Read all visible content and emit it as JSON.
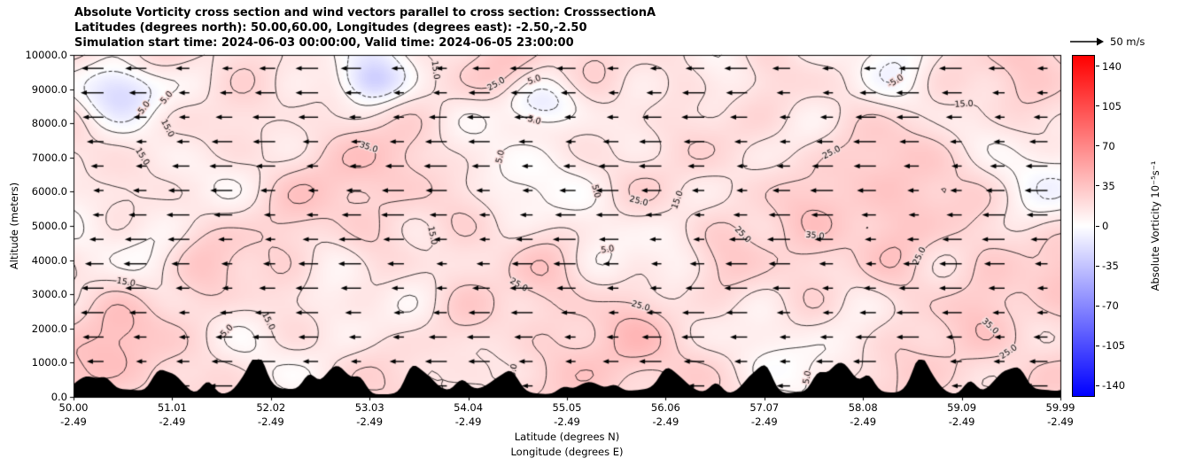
{
  "titles": {
    "line1": "Absolute Vorticity cross section and wind vectors parallel to cross section: CrosssectionA",
    "line2": "Latitudes (degrees north): 50.00,60.00, Longitudes (degrees east): -2.50,-2.50",
    "line3": "Simulation start time: 2024-06-03 00:00:00, Valid time: 2024-06-05 23:00:00"
  },
  "axes": {
    "xlabel_line1": "Latitude (degrees N)",
    "xlabel_line2": "Longitude (degrees E)",
    "ylabel": "Altitude (meters)"
  },
  "chart_data": {
    "type": "heatmap",
    "variant": "vertical cross-section: filled absolute-vorticity shading with labeled line contours, leftward wind vectors and black terrain silhouette along the bottom",
    "title": "Absolute Vorticity cross section and wind vectors parallel to cross section: CrosssectionA",
    "x": {
      "label": "Latitude (degrees N)",
      "ticks": [
        "50.00",
        "51.01",
        "52.02",
        "53.03",
        "54.04",
        "55.05",
        "56.06",
        "57.07",
        "58.08",
        "59.09",
        "59.99"
      ],
      "secondary_label": "Longitude (degrees E)",
      "secondary_ticks": [
        "-2.49",
        "-2.49",
        "-2.49",
        "-2.49",
        "-2.49",
        "-2.49",
        "-2.49",
        "-2.49",
        "-2.49",
        "-2.49",
        "-2.49"
      ],
      "range": [
        50.0,
        59.99
      ]
    },
    "y": {
      "label": "Altitude (meters)",
      "ticks": [
        "0.0",
        "1000.0",
        "2000.0",
        "3000.0",
        "4000.0",
        "5000.0",
        "6000.0",
        "7000.0",
        "8000.0",
        "9000.0",
        "10000.0"
      ],
      "range_meters": [
        0,
        10000
      ]
    },
    "colorbar": {
      "label": "Absolute Vorticity 10⁻⁵s⁻¹",
      "ticks": [
        140,
        105,
        70,
        35,
        0,
        -35,
        -70,
        -105,
        -140
      ],
      "vmin": -150,
      "vmax": 150,
      "colormap": "bwr",
      "color_negative": "#0000ff",
      "color_zero": "#ffffff",
      "color_positive": "#ff0000"
    },
    "contour_levels": [
      -5,
      5,
      15,
      25,
      35
    ],
    "contour_label_examples": [
      "-5.0",
      "5.0",
      "15.0",
      "25.0",
      "35.0"
    ],
    "wind": {
      "legend_label": "50 m/s",
      "direction": "arrows point left (toward lower latitude) on a regular grid"
    },
    "field_appearance": "mostly light red/pink (positive vorticity ~5 to 40), small pale blue (negative) patches near 8000-9500 m",
    "terrain": "black silhouette along the bottom axis, peaks up to roughly 500-900 m"
  }
}
